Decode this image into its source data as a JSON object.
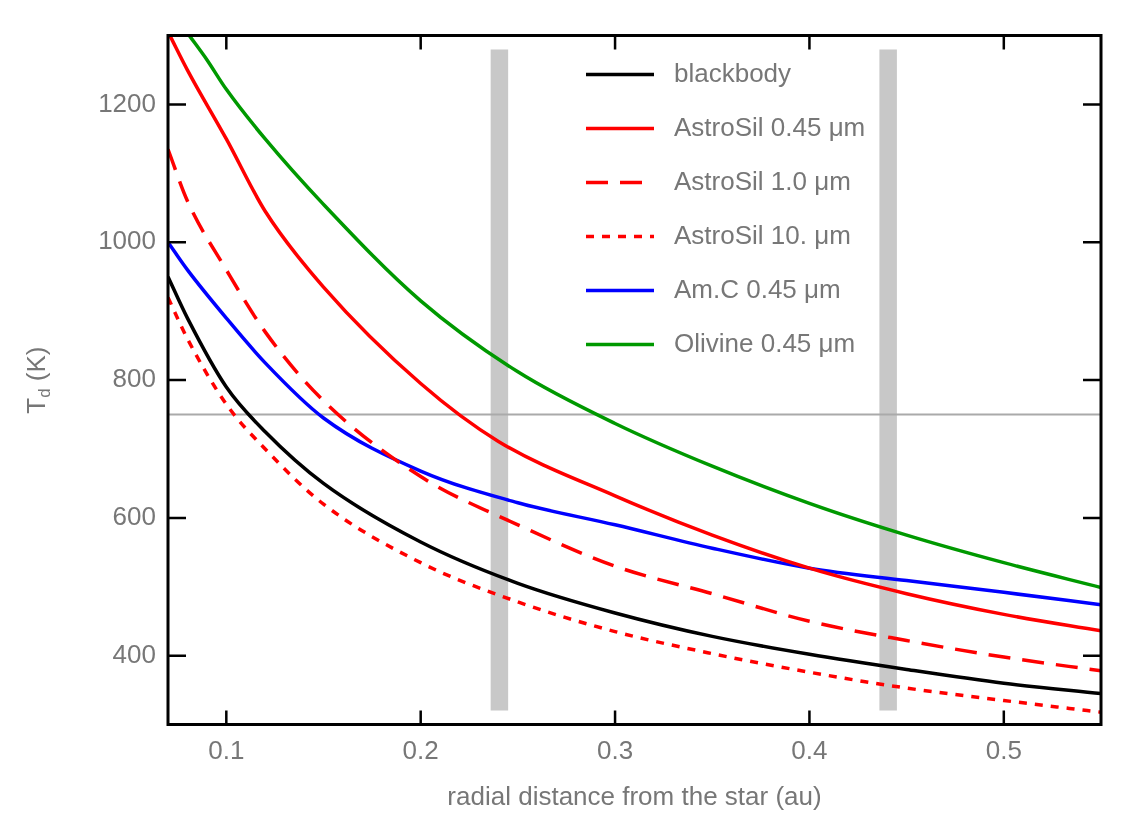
{
  "chart_data": {
    "type": "line",
    "xlabel": "radial distance from the star (au)",
    "ylabel": "T$_{d}$ (K)",
    "xlim": [
      0.07,
      0.55
    ],
    "xticks": [
      0.1,
      0.2,
      0.3,
      0.4,
      0.5
    ],
    "ylim": [
      300,
      1300
    ],
    "yticks": [
      400,
      600,
      800,
      1000,
      1200
    ],
    "grid": false,
    "legend": "top right",
    "marker": "none",
    "ref_lines": [
      {
        "axis": "y",
        "value": 750,
        "color": "#aaaaaa"
      }
    ],
    "bands": [
      {
        "axis": "x",
        "from": 0.236,
        "to": 0.245,
        "color": "#c8c8c8"
      },
      {
        "axis": "x",
        "from": 0.436,
        "to": 0.445,
        "color": "#c8c8c8"
      }
    ],
    "series": [
      {
        "name": "blackbody",
        "color": "#000000",
        "line_style": "solid",
        "x": [
          0.07,
          0.08,
          0.1,
          0.12,
          0.15,
          0.2,
          0.25,
          0.3,
          0.35,
          0.4,
          0.45,
          0.5,
          0.55
        ],
        "values": [
          950,
          890,
          790,
          725,
          650,
          565,
          505,
          462,
          428,
          402,
          380,
          360,
          345
        ]
      },
      {
        "name": "AstroSil 0.45 μm",
        "color": "#ff0000",
        "line_style": "solid",
        "x": [
          0.071,
          0.08,
          0.1,
          0.12,
          0.15,
          0.2,
          0.24,
          0.3,
          0.35,
          0.4,
          0.45,
          0.5,
          0.55
        ],
        "values": [
          1300,
          1250,
          1150,
          1045,
          935,
          795,
          711,
          632,
          575,
          527,
          490,
          460,
          436
        ]
      },
      {
        "name": "AstroSil 1.0 μm",
        "color": "#ff0000",
        "line_style": "dashed",
        "x": [
          0.07,
          0.08,
          0.1,
          0.12,
          0.15,
          0.2,
          0.25,
          0.3,
          0.35,
          0.4,
          0.45,
          0.5,
          0.55
        ],
        "values": [
          1135,
          1060,
          960,
          870,
          770,
          660,
          590,
          530,
          490,
          450,
          422,
          398,
          378
        ]
      },
      {
        "name": "AstroSil 10. μm",
        "color": "#ff0000",
        "line_style": "dotted",
        "x": [
          0.07,
          0.08,
          0.1,
          0.12,
          0.15,
          0.2,
          0.25,
          0.3,
          0.35,
          0.4,
          0.45,
          0.5,
          0.55
        ],
        "values": [
          920,
          860,
          765,
          700,
          620,
          535,
          478,
          435,
          403,
          376,
          353,
          335,
          318
        ]
      },
      {
        "name": "Am.C 0.45 μm",
        "color": "#0000ff",
        "line_style": "solid",
        "x": [
          0.07,
          0.08,
          0.1,
          0.12,
          0.15,
          0.2,
          0.25,
          0.3,
          0.35,
          0.4,
          0.45,
          0.5,
          0.55
        ],
        "values": [
          1000,
          960,
          890,
          825,
          745,
          668,
          622,
          590,
          556,
          527,
          509,
          492,
          474
        ]
      },
      {
        "name": "Olivine 0.45 μm",
        "color": "#009900",
        "line_style": "solid",
        "x": [
          0.081,
          0.09,
          0.1,
          0.12,
          0.15,
          0.2,
          0.25,
          0.3,
          0.35,
          0.4,
          0.45,
          0.5,
          0.55
        ],
        "values": [
          1300,
          1265,
          1222,
          1150,
          1055,
          915,
          812,
          737,
          675,
          621,
          575,
          535,
          499
        ]
      }
    ]
  }
}
